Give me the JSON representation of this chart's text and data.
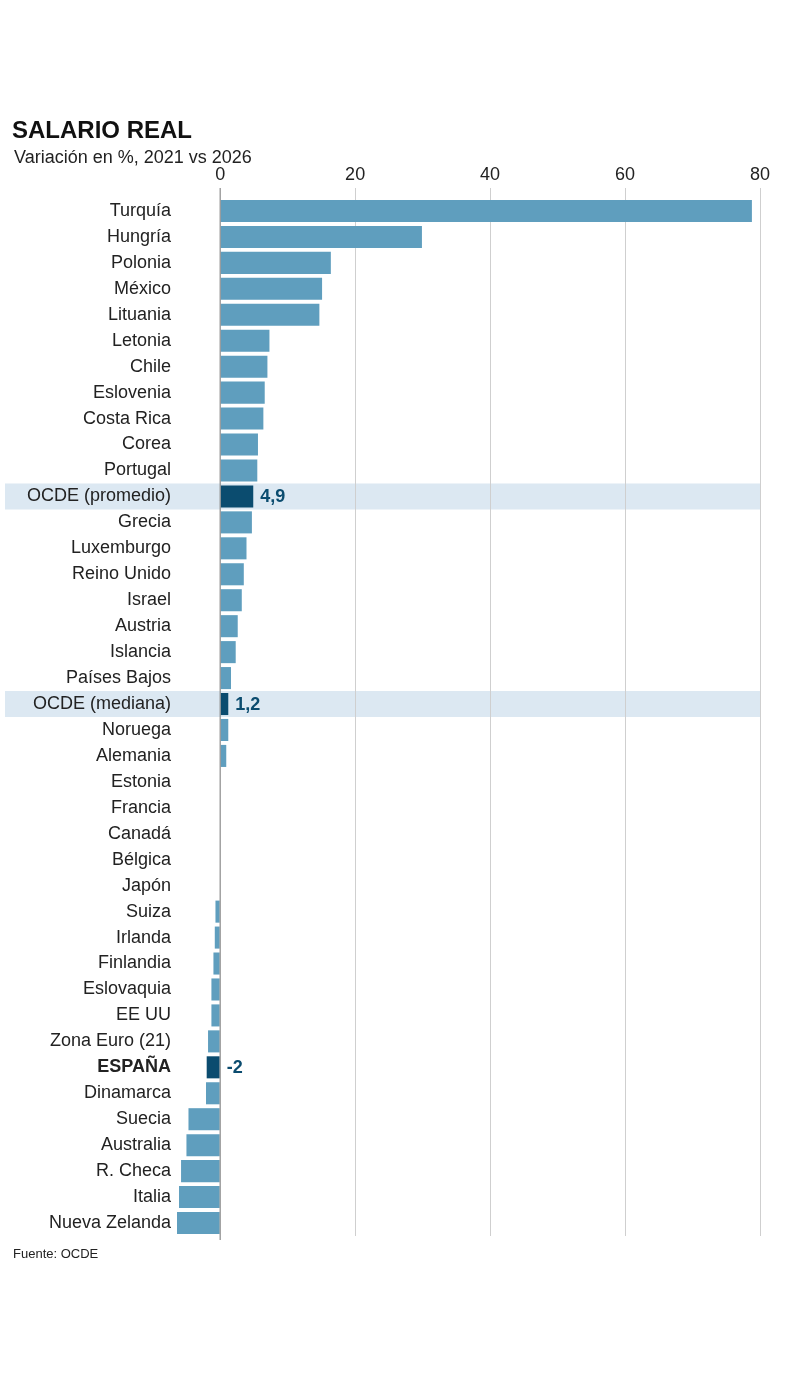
{
  "chart_data": {
    "type": "bar",
    "orientation": "horizontal",
    "title": "SALARIO REAL",
    "subtitle": "Variación en %, 2021 vs 2026",
    "annotations": [
      "Fuente: OCDE"
    ],
    "categories": [
      "Turquía",
      "Hungría",
      "Polonia",
      "México",
      "Lituania",
      "Letonia",
      "Chile",
      "Eslovenia",
      "Costa Rica",
      "Corea",
      "Portugal",
      "OCDE (promedio)",
      "Grecia",
      "Luxemburgo",
      "Reino Unido",
      "Israel",
      "Austria",
      "Islancia",
      "Países Bajos",
      "OCDE (mediana)",
      "Noruega",
      "Alemania",
      "Estonia",
      "Francia",
      "Canadá",
      "Bélgica",
      "Japón",
      "Suiza",
      "Irlanda",
      "Finlandia",
      "Eslovaquia",
      "EE UU",
      "Zona Euro (21)",
      "ESPAÑA",
      "Dinamarca",
      "Suecia",
      "Australia",
      "R. Checa",
      "Italia",
      "Nueva Zelanda"
    ],
    "values": [
      78.8,
      29.9,
      16.4,
      15.1,
      14.7,
      7.3,
      7.0,
      6.6,
      6.4,
      5.6,
      5.5,
      4.9,
      4.7,
      3.9,
      3.5,
      3.2,
      2.6,
      2.3,
      1.6,
      1.2,
      1.2,
      0.9,
      0,
      0,
      0,
      0,
      0,
      -0.7,
      -0.8,
      -1.0,
      -1.3,
      -1.3,
      -1.8,
      -2,
      -2.1,
      -4.7,
      -5.0,
      -5.8,
      -6.1,
      -6.4
    ],
    "colors": [
      "#5f9ebe",
      "#5f9ebe",
      "#5f9ebe",
      "#5f9ebe",
      "#5f9ebe",
      "#5f9ebe",
      "#5f9ebe",
      "#5f9ebe",
      "#5f9ebe",
      "#5f9ebe",
      "#5f9ebe",
      "#0b4c6f",
      "#5f9ebe",
      "#5f9ebe",
      "#5f9ebe",
      "#5f9ebe",
      "#5f9ebe",
      "#5f9ebe",
      "#5f9ebe",
      "#0b4c6f",
      "#5f9ebe",
      "#5f9ebe",
      "#5f9ebe",
      "#5f9ebe",
      "#5f9ebe",
      "#5f9ebe",
      "#5f9ebe",
      "#5f9ebe",
      "#5f9ebe",
      "#5f9ebe",
      "#5f9ebe",
      "#5f9ebe",
      "#5f9ebe",
      "#0b4c6f",
      "#5f9ebe",
      "#5f9ebe",
      "#5f9ebe",
      "#5f9ebe",
      "#5f9ebe",
      "#5f9ebe"
    ],
    "value_labels": [
      null,
      null,
      null,
      null,
      null,
      null,
      null,
      null,
      null,
      null,
      null,
      "4,9",
      null,
      null,
      null,
      null,
      null,
      null,
      null,
      "1,2",
      null,
      null,
      null,
      null,
      null,
      null,
      null,
      null,
      null,
      null,
      null,
      null,
      null,
      "-2",
      null,
      null,
      null,
      null,
      null,
      null
    ],
    "xlim": [
      -6.4,
      80
    ],
    "xticks": [
      0,
      20,
      40,
      60,
      80
    ],
    "grid": "x",
    "bands": [
      {
        "axis": "y",
        "from": "OCDE (promedio)",
        "to": "OCDE (promedio)",
        "color": "#dce8f2"
      },
      {
        "axis": "y",
        "from": "OCDE (mediana)",
        "to": "OCDE (mediana)",
        "color": "#dce8f2"
      }
    ]
  }
}
